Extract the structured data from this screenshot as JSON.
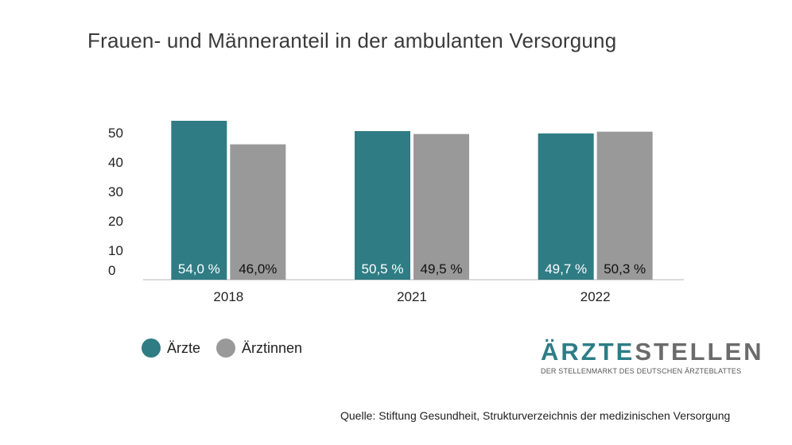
{
  "chart_data": {
    "type": "bar",
    "title": "Frauen- und Männeranteil in der ambulanten Versorgung",
    "categories": [
      "2018",
      "2021",
      "2022"
    ],
    "series": [
      {
        "name": "Ärzte",
        "color": "#2f7c84",
        "values": [
          54.0,
          50.5,
          49.7
        ],
        "labels": [
          "54,0 %",
          "50,5 %",
          "49,7 %"
        ],
        "label_color": "#ffffff"
      },
      {
        "name": "Ärztinnen",
        "color": "#999999",
        "values": [
          46.0,
          49.5,
          50.3
        ],
        "labels": [
          "46,0%",
          "49,5 %",
          "50,3 %"
        ],
        "label_color": "#111111"
      }
    ],
    "yticks": [
      "0",
      "10",
      "20",
      "30",
      "40",
      "50"
    ],
    "ylim": [
      0,
      54
    ],
    "grid": false,
    "legend_position": "bottom-left"
  },
  "brand": {
    "part1": "ÄRZTE",
    "part2": "STELLEN",
    "tagline": "DER STELLENMARKT DES DEUTSCHEN ÄRZTEBLATTES"
  },
  "source": "Quelle: Stiftung Gesundheit, Strukturverzeichnis der medizinischen Versorgung"
}
